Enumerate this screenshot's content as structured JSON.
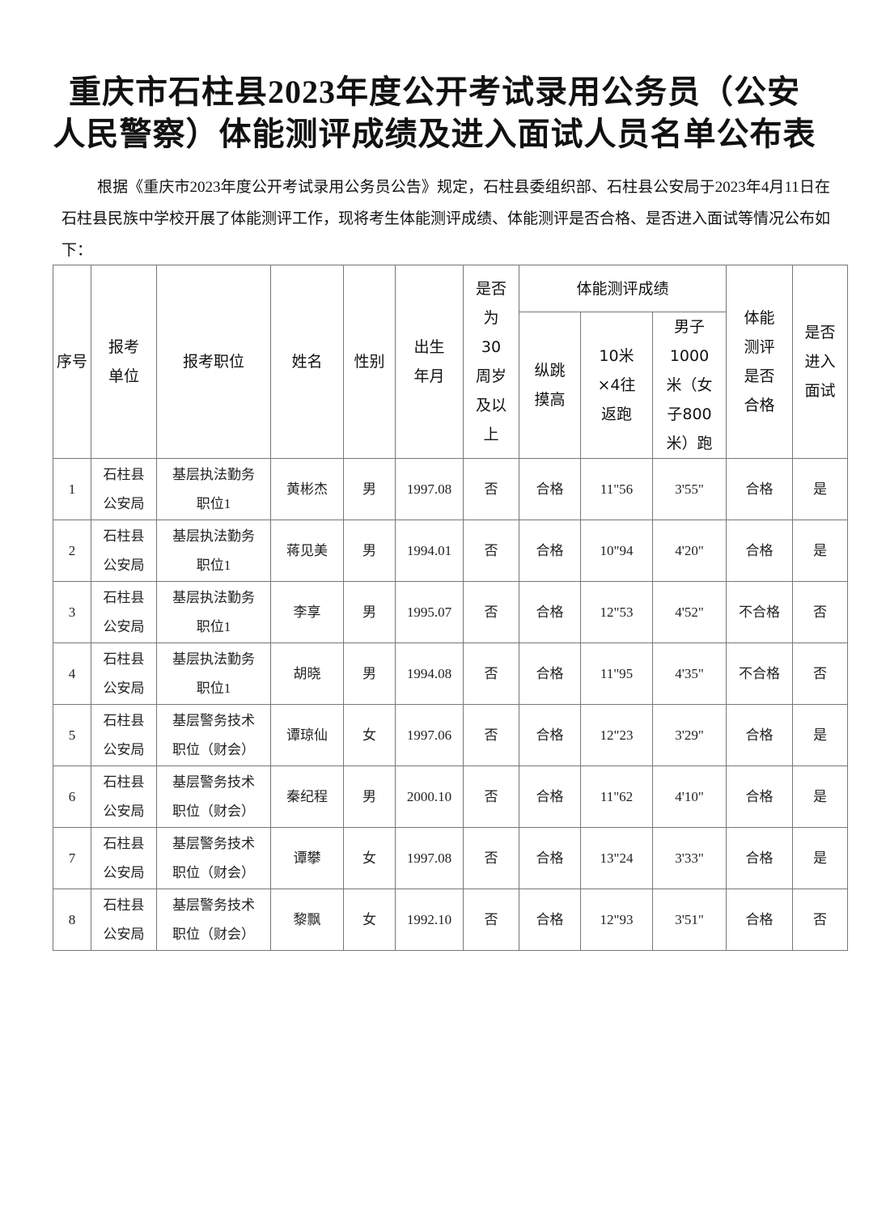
{
  "title": {
    "line1": "重庆市石柱县2023年度公开考试录用公务员（公安",
    "line2": "人民警察）体能测评成绩及进入面试人员名单公布表"
  },
  "intro": "根据《重庆市2023年度公开考试录用公务员公告》规定，石柱县委组织部、石柱县公安局于2023年4月11日在石柱县民族中学校开展了体能测评工作，现将考生体能测评成绩、体能测评是否合格、是否进入面试等情况公布如下：",
  "table": {
    "headers": {
      "seq": "序号",
      "unit": "报考单位",
      "position": "报考职位",
      "name": "姓名",
      "gender": "性别",
      "birth": "出生年月",
      "over30": "是否为30周岁及以上",
      "score_group": "体能测评成绩",
      "jump": "纵跳摸高",
      "shuttle": "10米×4往返跑",
      "run": "男子1000米（女子800米）跑",
      "qualified": "体能测评是否合格",
      "interview": "是否进入面试"
    },
    "rows": [
      [
        "1",
        "石柱县公安局",
        "基层执法勤务职位1",
        "黄彬杰",
        "男",
        "1997.08",
        "否",
        "合格",
        "11\"56",
        "3'55\"",
        "合格",
        "是"
      ],
      [
        "2",
        "石柱县公安局",
        "基层执法勤务职位1",
        "蒋见美",
        "男",
        "1994.01",
        "否",
        "合格",
        "10\"94",
        "4'20\"",
        "合格",
        "是"
      ],
      [
        "3",
        "石柱县公安局",
        "基层执法勤务职位1",
        "李享",
        "男",
        "1995.07",
        "否",
        "合格",
        "12\"53",
        "4'52\"",
        "不合格",
        "否"
      ],
      [
        "4",
        "石柱县公安局",
        "基层执法勤务职位1",
        "胡晓",
        "男",
        "1994.08",
        "否",
        "合格",
        "11\"95",
        "4'35\"",
        "不合格",
        "否"
      ],
      [
        "5",
        "石柱县公安局",
        "基层警务技术职位（财会）",
        "谭琼仙",
        "女",
        "1997.06",
        "否",
        "合格",
        "12\"23",
        "3'29\"",
        "合格",
        "是"
      ],
      [
        "6",
        "石柱县公安局",
        "基层警务技术职位（财会）",
        "秦纪程",
        "男",
        "2000.10",
        "否",
        "合格",
        "11\"62",
        "4'10\"",
        "合格",
        "是"
      ],
      [
        "7",
        "石柱县公安局",
        "基层警务技术职位（财会）",
        "谭攀",
        "女",
        "1997.08",
        "否",
        "合格",
        "13\"24",
        "3'33\"",
        "合格",
        "是"
      ],
      [
        "8",
        "石柱县公安局",
        "基层警务技术职位（财会）",
        "黎飘",
        "女",
        "1992.10",
        "否",
        "合格",
        "12\"93",
        "3'51\"",
        "合格",
        "否"
      ]
    ]
  }
}
